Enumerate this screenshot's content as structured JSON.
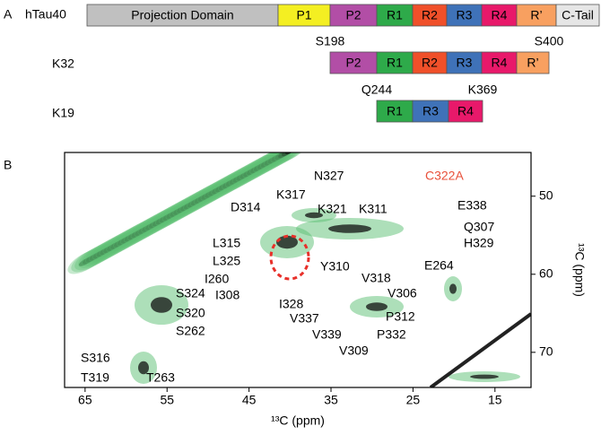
{
  "panel_a": {
    "letter": "A",
    "rows": [
      {
        "name": "hTau40",
        "segments": [
          "Projection Domain",
          "P1",
          "P2",
          "R1",
          "R2",
          "R3",
          "R4",
          "R’",
          "C-Tail"
        ]
      },
      {
        "name": "K32",
        "start": "S198",
        "end": "S400",
        "segments": [
          "P2",
          "R1",
          "R2",
          "R3",
          "R4",
          "R’"
        ]
      },
      {
        "name": "K19",
        "start": "Q244",
        "end": "K369",
        "segments": [
          "R1",
          "R3",
          "R4"
        ]
      }
    ]
  },
  "panel_b": {
    "letter": "B",
    "xlabel": "¹³C (ppm)",
    "ylabel": "¹³C (ppm)",
    "xlim": [
      67.5,
      10.6
    ],
    "ylim": [
      44.4,
      74.5
    ],
    "xticks": [
      65,
      55,
      45,
      35,
      25,
      15
    ],
    "yticks": [
      50,
      60,
      70
    ],
    "mutation": "C322A",
    "peaks": [
      "N327",
      "K317",
      "D314",
      "K321",
      "K311",
      "E338",
      "Q307",
      "H329",
      "L315",
      "L325",
      "E264",
      "Y310",
      "V318",
      "I260",
      "I308",
      "I328",
      "V306",
      "V337",
      "P312",
      "V339",
      "P332",
      "V309",
      "S324",
      "S320",
      "S262",
      "S316",
      "T319",
      "T263"
    ]
  }
}
